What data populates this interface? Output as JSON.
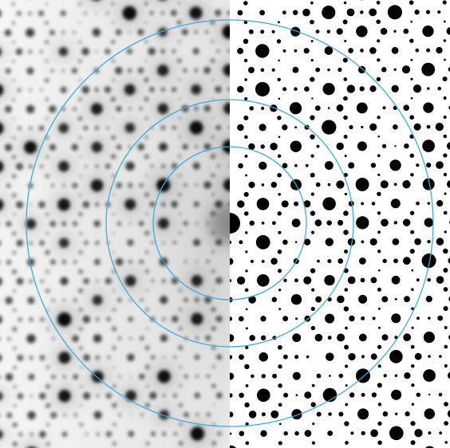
{
  "figure": {
    "left_panel": "experimental-diffraction-pattern",
    "right_panel": "simulated-diffraction-pattern",
    "colors": {
      "background": "#ffffff",
      "left_haze": "#e9e9e9",
      "spots": "#000000",
      "rings": "#3fa9dc"
    },
    "ring_count": 3
  }
}
